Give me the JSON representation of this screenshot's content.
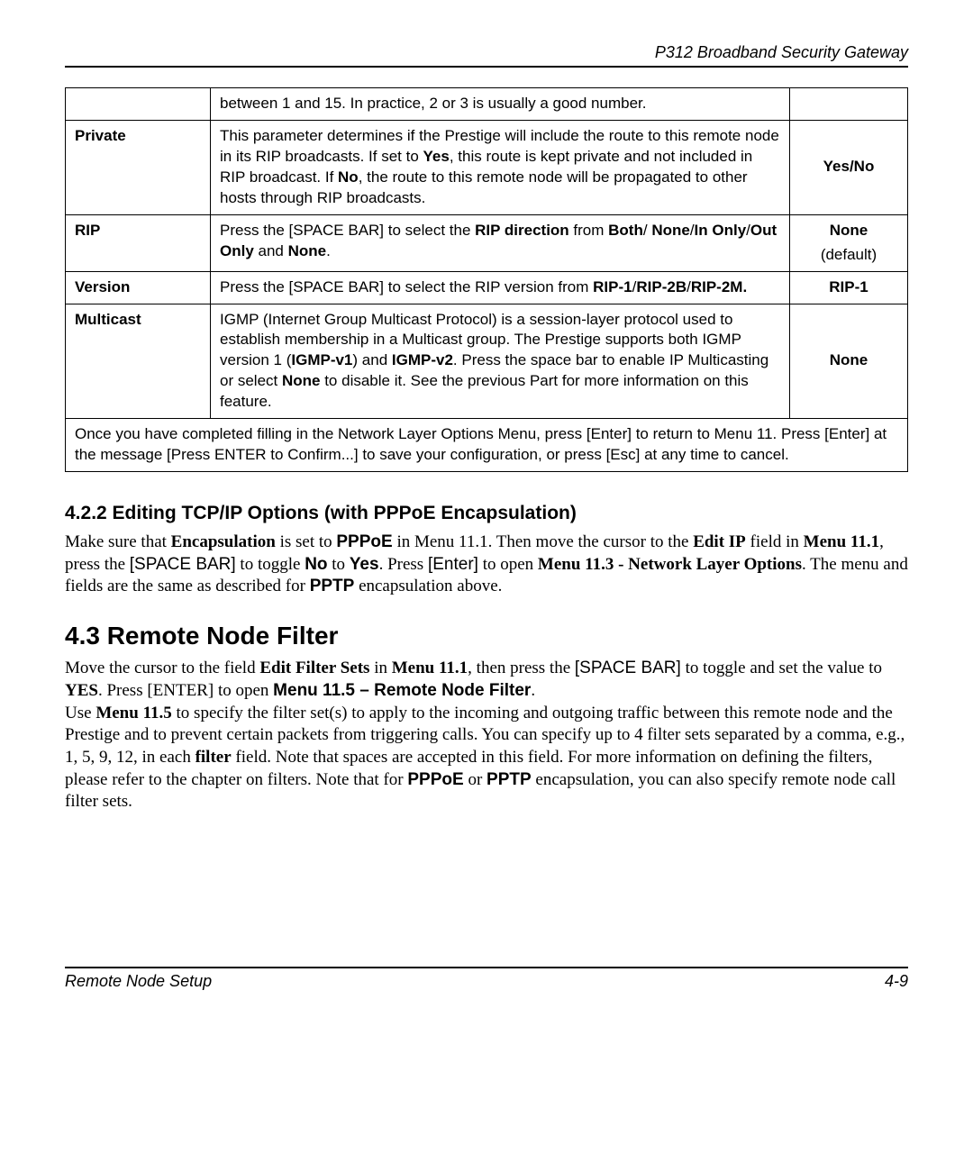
{
  "header": {
    "title": "P312  Broadband Security Gateway"
  },
  "table": {
    "rows": [
      {
        "field": "",
        "desc": "between 1 and 15. In practice, 2 or 3 is usually a good number.",
        "opt": "",
        "opt_sub": ""
      },
      {
        "field": "Private",
        "desc": "This parameter determines if the Prestige will include the route to this remote node in its RIP broadcasts. If set to <b>Yes</b>, this route is kept private and not included in RIP broadcast. If <b>No</b>, the route to this remote node will be propagated to other hosts through RIP broadcasts.",
        "opt": "Yes/No",
        "opt_sub": ""
      },
      {
        "field": "RIP",
        "desc": "Press the [SPACE BAR] to select the <b>RIP direction</b> from <b>Both</b>/ <b>None</b>/<b>In Only</b>/<b>Out Only</b> and <b>None</b>.",
        "opt": "None",
        "opt_sub": "(default)"
      },
      {
        "field": "Version",
        "desc": "Press the [SPACE BAR] to select the RIP version from <b>RIP-1</b>/<b>RIP-2B</b>/<b>RIP-2M.</b>",
        "opt": "RIP-1",
        "opt_sub": ""
      },
      {
        "field": "Multicast",
        "desc": "IGMP (Internet Group Multicast Protocol) is a session-layer protocol used to establish membership in a Multicast group. The Prestige supports both IGMP version 1 (<b>IGMP-v1</b>) and <b>IGMP-v2</b>. Press the space bar to enable IP Multicasting or select <b>None</b> to disable it. See the previous Part for more information on this feature.",
        "opt": "None",
        "opt_sub": ""
      }
    ],
    "footer": "Once you have completed filling in the Network Layer Options Menu, press [Enter] to return to Menu 11. Press [Enter] at the message [Press ENTER to Confirm...] to save your configuration, or press [Esc] at any time to cancel."
  },
  "sec422": {
    "heading": "4.2.2   Editing TCP/IP Options (with PPPoE Encapsulation)",
    "body": "Make sure that <b>Encapsulation</b> is set to <b class=\"sans\">PPPoE</b> in Menu 11.1. Then move the cursor to the <b>Edit IP</b> field in <b>Menu 11.1</b>, press the <span class=\"sans\">[SPACE BAR]</span> to toggle <b class=\"sans\">No</b> to <b class=\"sans\">Yes</b>.  Press <span class=\"sans\">[Enter]</span> to open <b>Menu 11.3 - Network Layer Options</b>. The menu and fields are the same as described for <b class=\"sans\">PPTP</b> encapsulation above."
  },
  "sec43": {
    "heading": "4.3    Remote Node Filter",
    "body": "Move the cursor to the field <b>Edit Filter Sets</b> in <b>Menu 11.1</b>, then press the <span class=\"sans\">[SPACE BAR]</span> to toggle and set the value to <b>YES</b>. Press [ENTER] to open <b class=\"sans\">Menu 11.5 – Remote Node Filter</b>.<br>Use <b>Menu 11.5</b> to specify the filter set(s) to apply to the incoming and outgoing traffic between this remote node and the Prestige and to prevent certain packets from triggering calls. You can specify up to 4 filter sets separated by a comma, e.g., 1, 5, 9, 12, in each <b>filter</b> field. Note that spaces are accepted in this field.  For more information on defining the filters, please refer to the chapter on filters. Note that for <b class=\"sans\">PPPoE</b> or <b class=\"sans\">PPTP</b> encapsulation, you can also specify remote node call filter sets."
  },
  "footer": {
    "left": "Remote Node Setup",
    "right": "4-9"
  }
}
